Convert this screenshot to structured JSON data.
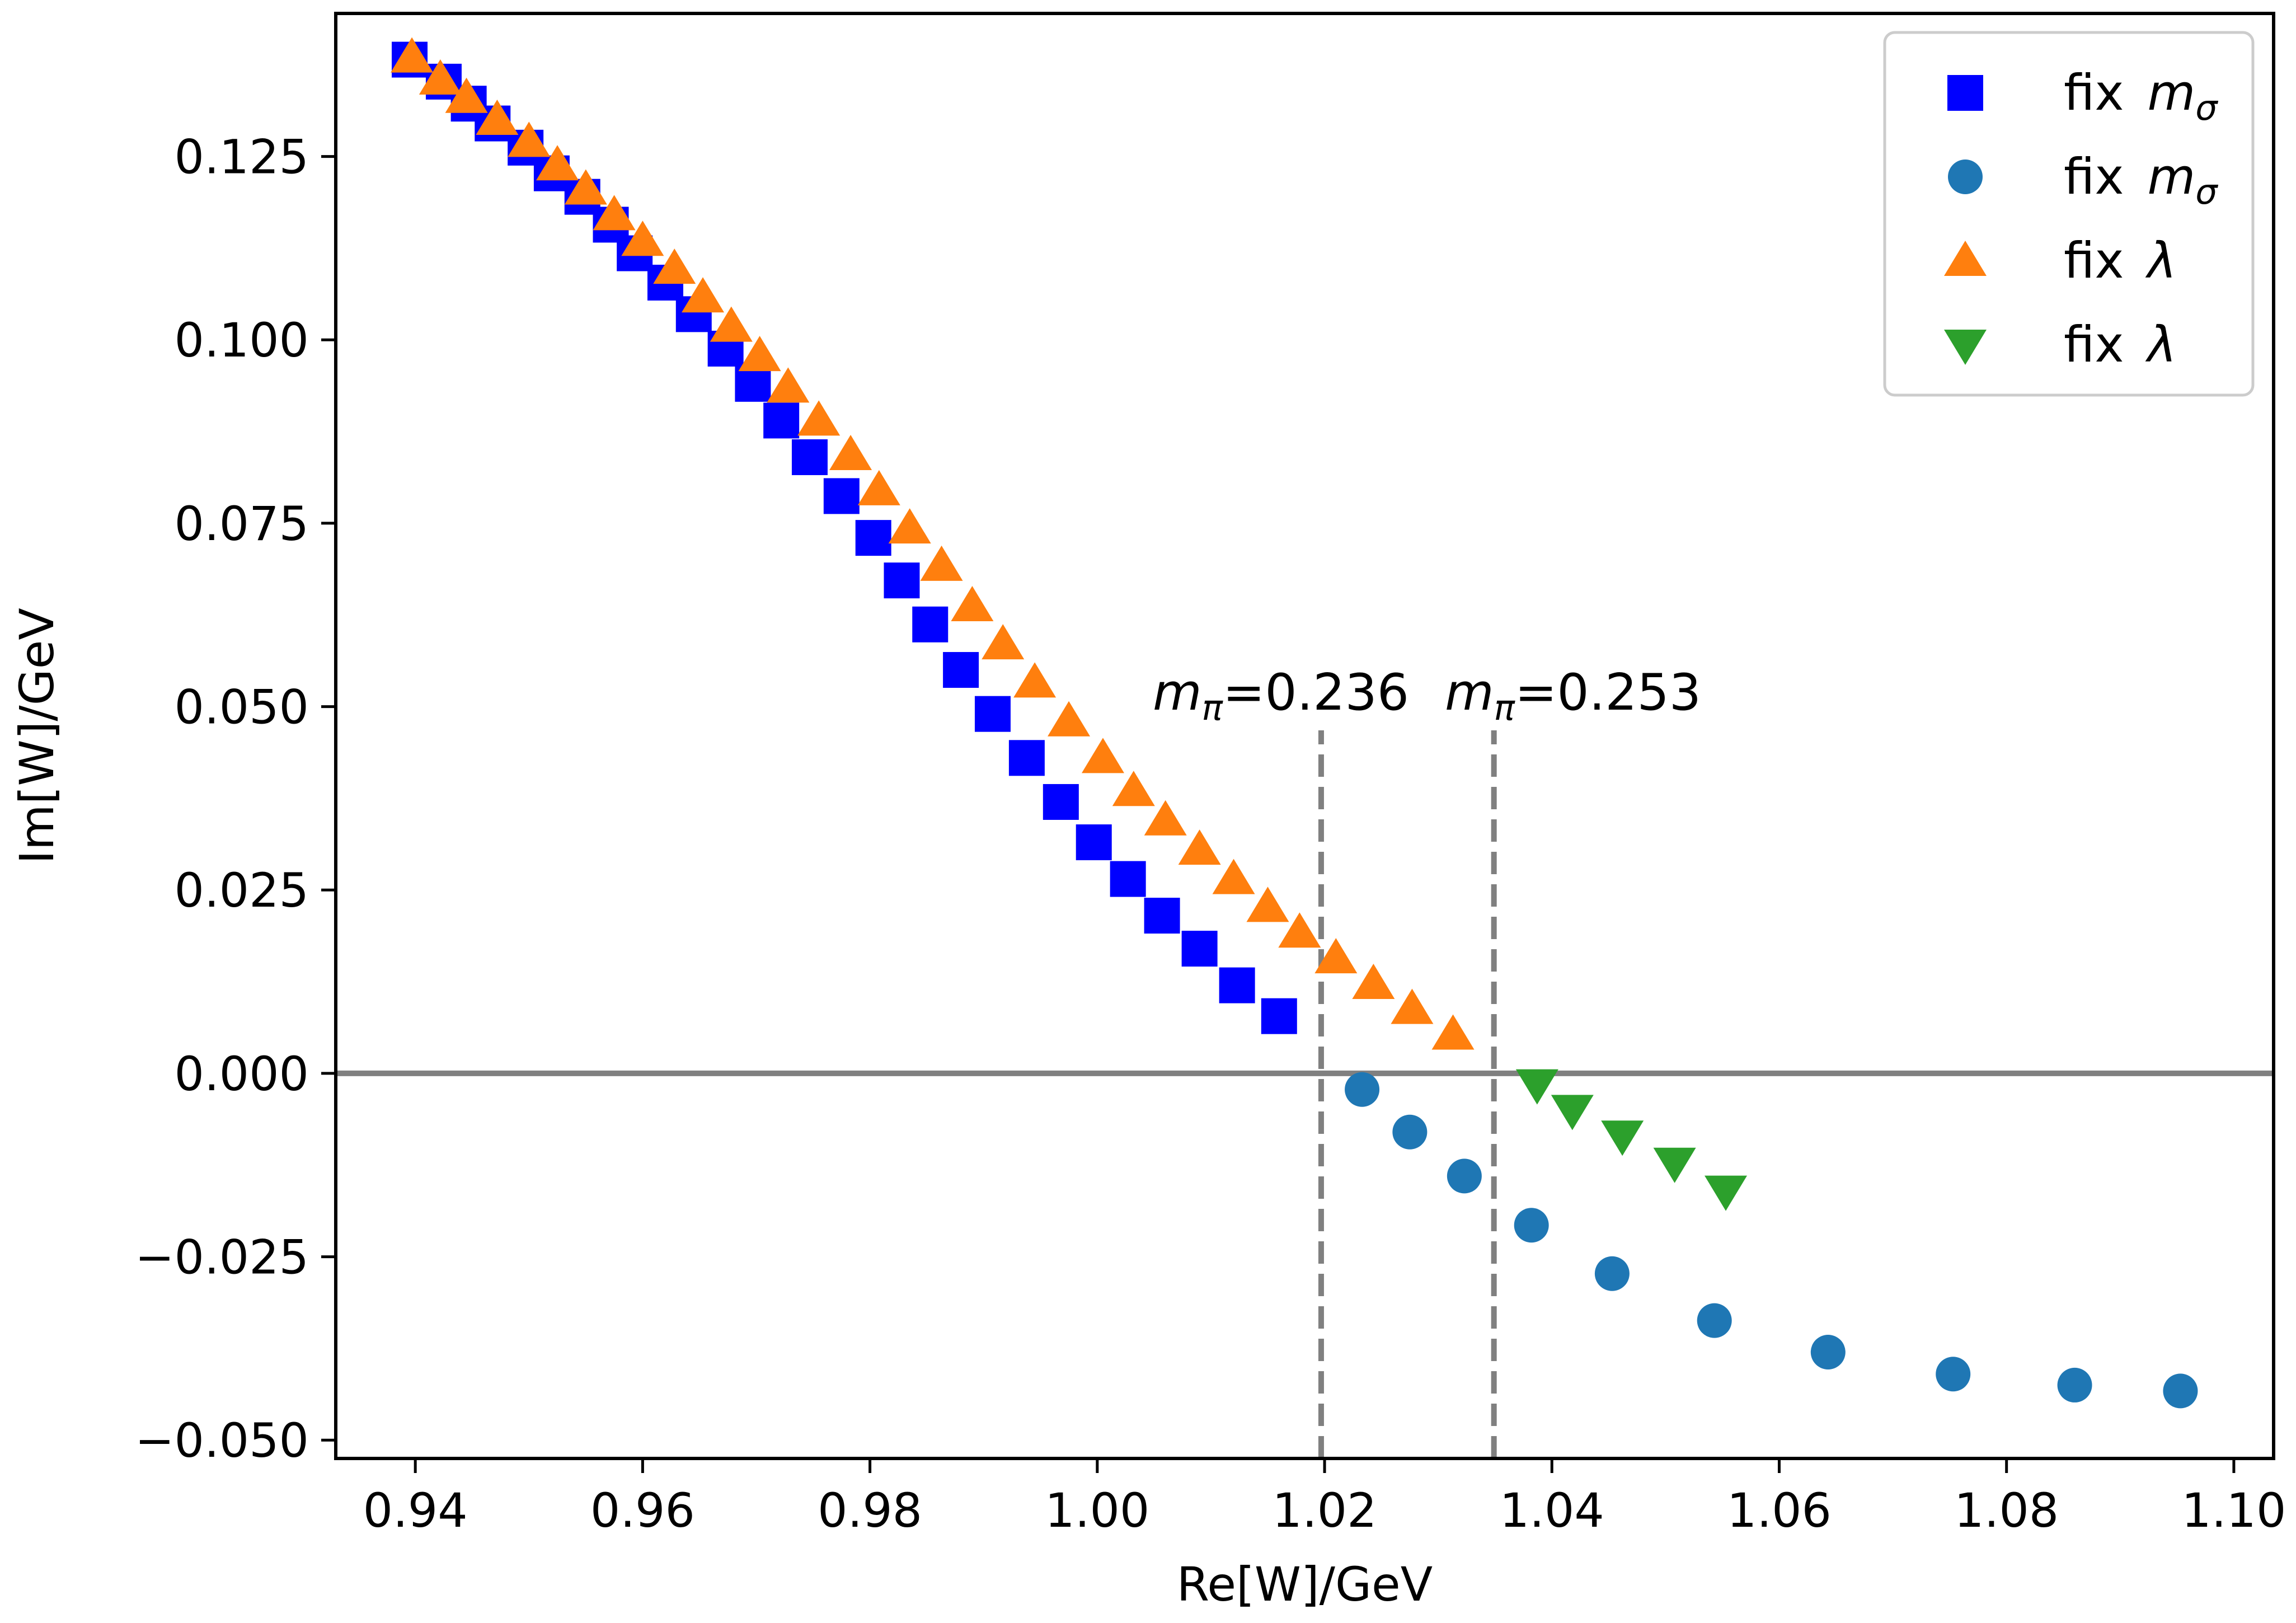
{
  "chart_data": {
    "type": "scatter",
    "title": "",
    "xlabel": "Re[W]/GeV",
    "ylabel": "Im[W]/GeV",
    "xlim": [
      0.933,
      1.1035
    ],
    "ylim": [
      -0.0525,
      0.1445
    ],
    "xticks": [
      0.94,
      0.96,
      0.98,
      1.0,
      1.02,
      1.04,
      1.06,
      1.08,
      1.1
    ],
    "xtick_labels": [
      "0.94",
      "0.96",
      "0.98",
      "1.00",
      "1.02",
      "1.04",
      "1.06",
      "1.08",
      "1.10"
    ],
    "yticks": [
      -0.05,
      -0.025,
      0.0,
      0.025,
      0.05,
      0.075,
      0.1,
      0.125
    ],
    "ytick_labels": [
      "−0.050",
      "−0.025",
      "0.000",
      "0.025",
      "0.050",
      "0.075",
      "0.100",
      "0.125"
    ],
    "grid": false,
    "legend_position": "top-right",
    "horizontal_line": {
      "y": 0.0,
      "color": "#808080"
    },
    "vertical_lines": [
      {
        "x": 1.0197,
        "color": "#808080",
        "style": "dashed",
        "label_math": "m",
        "label_sub": "π",
        "label_value": "=0.236"
      },
      {
        "x": 1.0349,
        "color": "#808080",
        "style": "dashed",
        "label_math": "m",
        "label_sub": "π",
        "label_value": "=0.253"
      }
    ],
    "series": [
      {
        "name": "fix m_sigma (upper)",
        "legend_text": "fix ",
        "legend_math": "m",
        "legend_sub": "σ",
        "marker": "square",
        "color": "#0000ff",
        "x": [
          0.9395,
          0.9425,
          0.9447,
          0.9468,
          0.9497,
          0.952,
          0.9547,
          0.9572,
          0.9593,
          0.962,
          0.9645,
          0.9673,
          0.9697,
          0.9722,
          0.9747,
          0.9775,
          0.9803,
          0.9828,
          0.9853,
          0.988,
          0.9908,
          0.9938,
          0.9968,
          0.9997,
          1.0027,
          1.0057,
          1.009,
          1.0123,
          1.016
        ],
        "y": [
          0.1382,
          0.1352,
          0.1322,
          0.1295,
          0.1262,
          0.1227,
          0.1195,
          0.1157,
          0.1118,
          0.1078,
          0.1035,
          0.0988,
          0.094,
          0.089,
          0.084,
          0.0787,
          0.073,
          0.0672,
          0.0612,
          0.055,
          0.049,
          0.043,
          0.037,
          0.0315,
          0.0265,
          0.0215,
          0.017,
          0.012,
          0.0078
        ]
      },
      {
        "name": "fix m_sigma (lower)",
        "legend_text": "fix ",
        "legend_math": "m",
        "legend_sub": "σ",
        "marker": "circle",
        "color": "#1f77b4",
        "x": [
          1.0233,
          1.0275,
          1.0323,
          1.0382,
          1.0453,
          1.0543,
          1.0643,
          1.0753,
          1.086,
          1.0953
        ],
        "y": [
          -0.0022,
          -0.008,
          -0.014,
          -0.0207,
          -0.0273,
          -0.0337,
          -0.038,
          -0.041,
          -0.0425,
          -0.0433
        ]
      },
      {
        "name": "fix lambda (upper)",
        "legend_text": "fix ",
        "legend_math": "λ",
        "legend_sub": "",
        "marker": "triangle-up",
        "color": "#ff7f0e",
        "x": [
          0.9397,
          0.9422,
          0.9445,
          0.9472,
          0.95,
          0.9525,
          0.955,
          0.9575,
          0.96,
          0.9628,
          0.9653,
          0.9678,
          0.9703,
          0.9728,
          0.9755,
          0.9783,
          0.9808,
          0.9835,
          0.9863,
          0.989,
          0.9917,
          0.9945,
          0.9975,
          1.0005,
          1.0032,
          1.006,
          1.009,
          1.012,
          1.015,
          1.0178,
          1.021,
          1.0243,
          1.0277,
          1.0313
        ],
        "y": [
          0.1385,
          0.1355,
          0.133,
          0.13,
          0.127,
          0.1238,
          0.1205,
          0.117,
          0.1135,
          0.1097,
          0.1058,
          0.1018,
          0.0978,
          0.0935,
          0.089,
          0.0843,
          0.0795,
          0.0743,
          0.0692,
          0.0637,
          0.0585,
          0.0533,
          0.048,
          0.043,
          0.0385,
          0.0345,
          0.0305,
          0.0265,
          0.0227,
          0.0192,
          0.0157,
          0.0122,
          0.0088,
          0.0053
        ]
      },
      {
        "name": "fix lambda (lower)",
        "legend_text": "fix ",
        "legend_math": "λ",
        "legend_sub": "",
        "marker": "triangle-down",
        "color": "#2ca02c",
        "x": [
          1.0387,
          1.0418,
          1.0462,
          1.0508,
          1.0553
        ],
        "y": [
          -0.0015,
          -0.005,
          -0.0085,
          -0.0122,
          -0.016
        ]
      }
    ]
  }
}
